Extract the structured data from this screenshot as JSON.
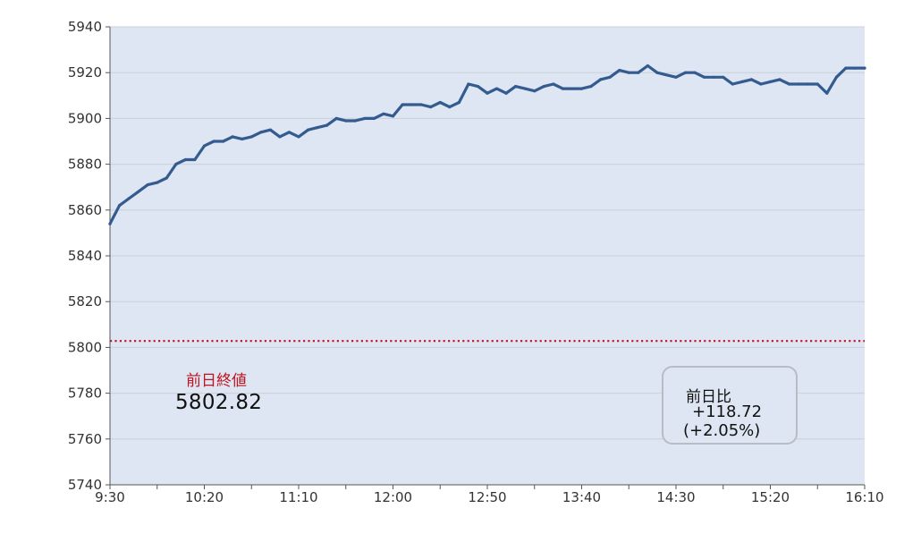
{
  "chart_data": {
    "type": "line",
    "title": "",
    "xlabel": "",
    "ylabel": "",
    "ylim": [
      5740,
      5940
    ],
    "yticks": [
      5940,
      5920,
      5900,
      5880,
      5860,
      5840,
      5820,
      5800,
      5780,
      5760,
      5740
    ],
    "xticks": [
      "9:30",
      "10:20",
      "11:10",
      "12:00",
      "12:50",
      "13:40",
      "14:30",
      "15:20",
      "16:10"
    ],
    "x_range": [
      "9:30",
      "16:10"
    ],
    "x_interval_minutes": 5,
    "grid": true,
    "line_color": "#345b8f",
    "reference_line": {
      "value": 5802.82,
      "color": "#c0141e",
      "style": "dotted"
    },
    "series": [
      {
        "values": [
          5854,
          5862,
          5865,
          5868,
          5871,
          5872,
          5874,
          5880,
          5882,
          5882,
          5888,
          5890,
          5890,
          5892,
          5891,
          5892,
          5894,
          5895,
          5892,
          5894,
          5892,
          5895,
          5896,
          5897,
          5900,
          5899,
          5899,
          5900,
          5900,
          5902,
          5901,
          5906,
          5906,
          5906,
          5905,
          5907,
          5905,
          5907,
          5915,
          5914,
          5911,
          5913,
          5911,
          5914,
          5913,
          5912,
          5914,
          5915,
          5913,
          5913,
          5913,
          5914,
          5917,
          5918,
          5921,
          5920,
          5920,
          5923,
          5920,
          5919,
          5918,
          5920,
          5920,
          5918,
          5918,
          5918,
          5915,
          5916,
          5917,
          5915,
          5916,
          5917,
          5915,
          5915,
          5915,
          5915,
          5911,
          5918,
          5922,
          5922,
          5922
        ]
      }
    ]
  },
  "annotations": {
    "prev_close_label": "前日終値",
    "prev_close_value": "5802.82",
    "change_label": "前日比",
    "change_abs": "+118.72",
    "change_pct": "(+2.05%)"
  }
}
